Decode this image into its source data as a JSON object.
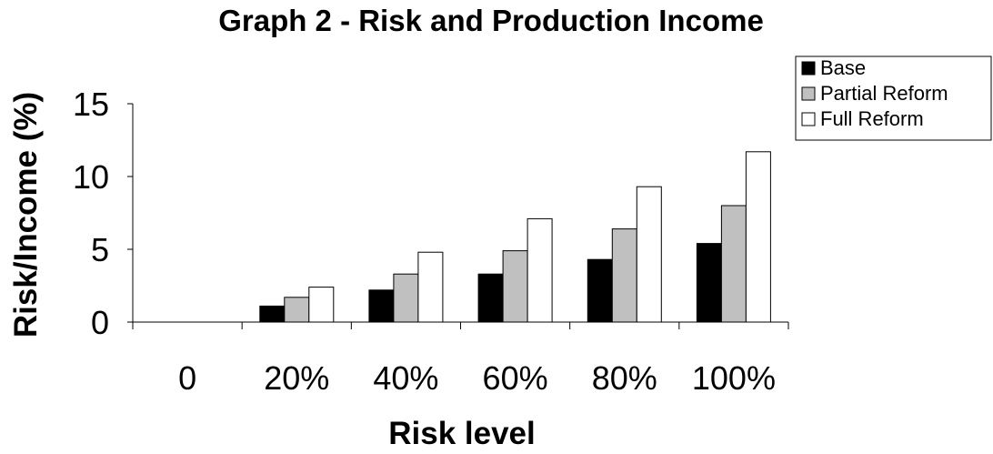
{
  "chart_data": {
    "type": "bar",
    "title": "Graph 2 - Risk and Production Income",
    "xlabel": "Risk level",
    "ylabel": "Risk/Income (%)",
    "categories": [
      "0",
      "20%",
      "40%",
      "60%",
      "80%",
      "100%"
    ],
    "ylim": [
      0,
      15
    ],
    "yticks": [
      "0",
      "5",
      "10",
      "15"
    ],
    "grid": false,
    "legend_position": "top-right",
    "series": [
      {
        "name": "Base",
        "color": "#000000",
        "values": [
          0,
          1.1,
          2.2,
          3.3,
          4.3,
          5.4
        ]
      },
      {
        "name": "Partial Reform",
        "color": "#c0c0c0",
        "values": [
          0,
          1.7,
          3.3,
          4.9,
          6.4,
          8.0
        ]
      },
      {
        "name": "Full Reform",
        "color": "#ffffff",
        "values": [
          0,
          2.4,
          4.8,
          7.1,
          9.3,
          11.7
        ]
      }
    ]
  }
}
